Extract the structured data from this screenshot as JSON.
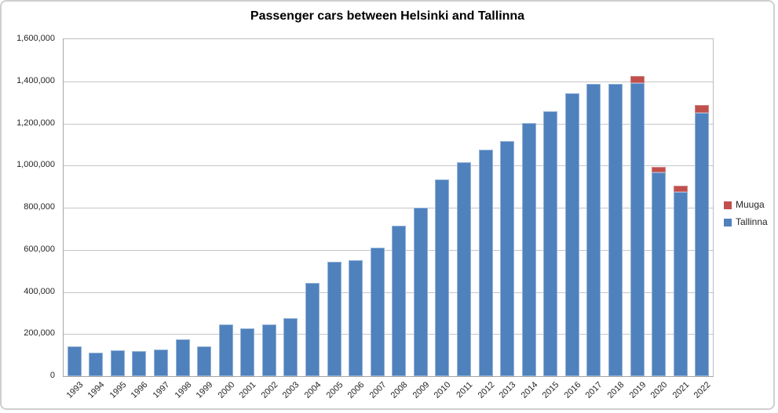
{
  "chart_data": {
    "type": "bar",
    "stacked": true,
    "title": "Passenger cars between Helsinki and Tallinna",
    "categories": [
      "1993",
      "1994",
      "1995",
      "1996",
      "1997",
      "1998",
      "1999",
      "2000",
      "2001",
      "2002",
      "2003",
      "2004",
      "2005",
      "2006",
      "2007",
      "2008",
      "2009",
      "2010",
      "2011",
      "2012",
      "2013",
      "2014",
      "2015",
      "2016",
      "2017",
      "2018",
      "2019",
      "2020",
      "2021",
      "2022"
    ],
    "series": [
      {
        "name": "Tallinna",
        "color": "#4F81BD",
        "border_color": "#95B3D7",
        "values": [
          140000,
          113000,
          121000,
          118000,
          127000,
          174000,
          142000,
          246000,
          228000,
          246000,
          275000,
          441000,
          542000,
          549000,
          612000,
          715000,
          799000,
          934000,
          1016000,
          1074000,
          1115000,
          1203000,
          1257000,
          1345000,
          1388000,
          1387000,
          1393000,
          968000,
          873000,
          1250000
        ]
      },
      {
        "name": "Muuga",
        "color": "#C0504D",
        "border_color": "#D08583",
        "values": [
          0,
          0,
          0,
          0,
          0,
          0,
          0,
          0,
          0,
          0,
          0,
          0,
          0,
          0,
          0,
          0,
          0,
          0,
          0,
          0,
          0,
          0,
          0,
          0,
          0,
          0,
          32000,
          25000,
          33000,
          36000
        ]
      }
    ],
    "ylim": [
      0,
      1600000
    ],
    "ytick_interval": 200000,
    "ytick_labels": [
      "0",
      "200,000",
      "400,000",
      "600,000",
      "800,000",
      "1,000,000",
      "1,200,000",
      "1,400,000",
      "1,600,000"
    ],
    "grid": true,
    "xlabel": "",
    "ylabel": "",
    "legend": {
      "position": "right",
      "entries": [
        {
          "label": "Muuga",
          "color": "#C0504D"
        },
        {
          "label": "Tallinna",
          "color": "#4F81BD"
        }
      ]
    },
    "colors": {
      "gridline": "#C6C6C6",
      "axis": "#A6A6A6",
      "frame_border": "#CFCFCF",
      "background": "#FFFFFF"
    }
  }
}
